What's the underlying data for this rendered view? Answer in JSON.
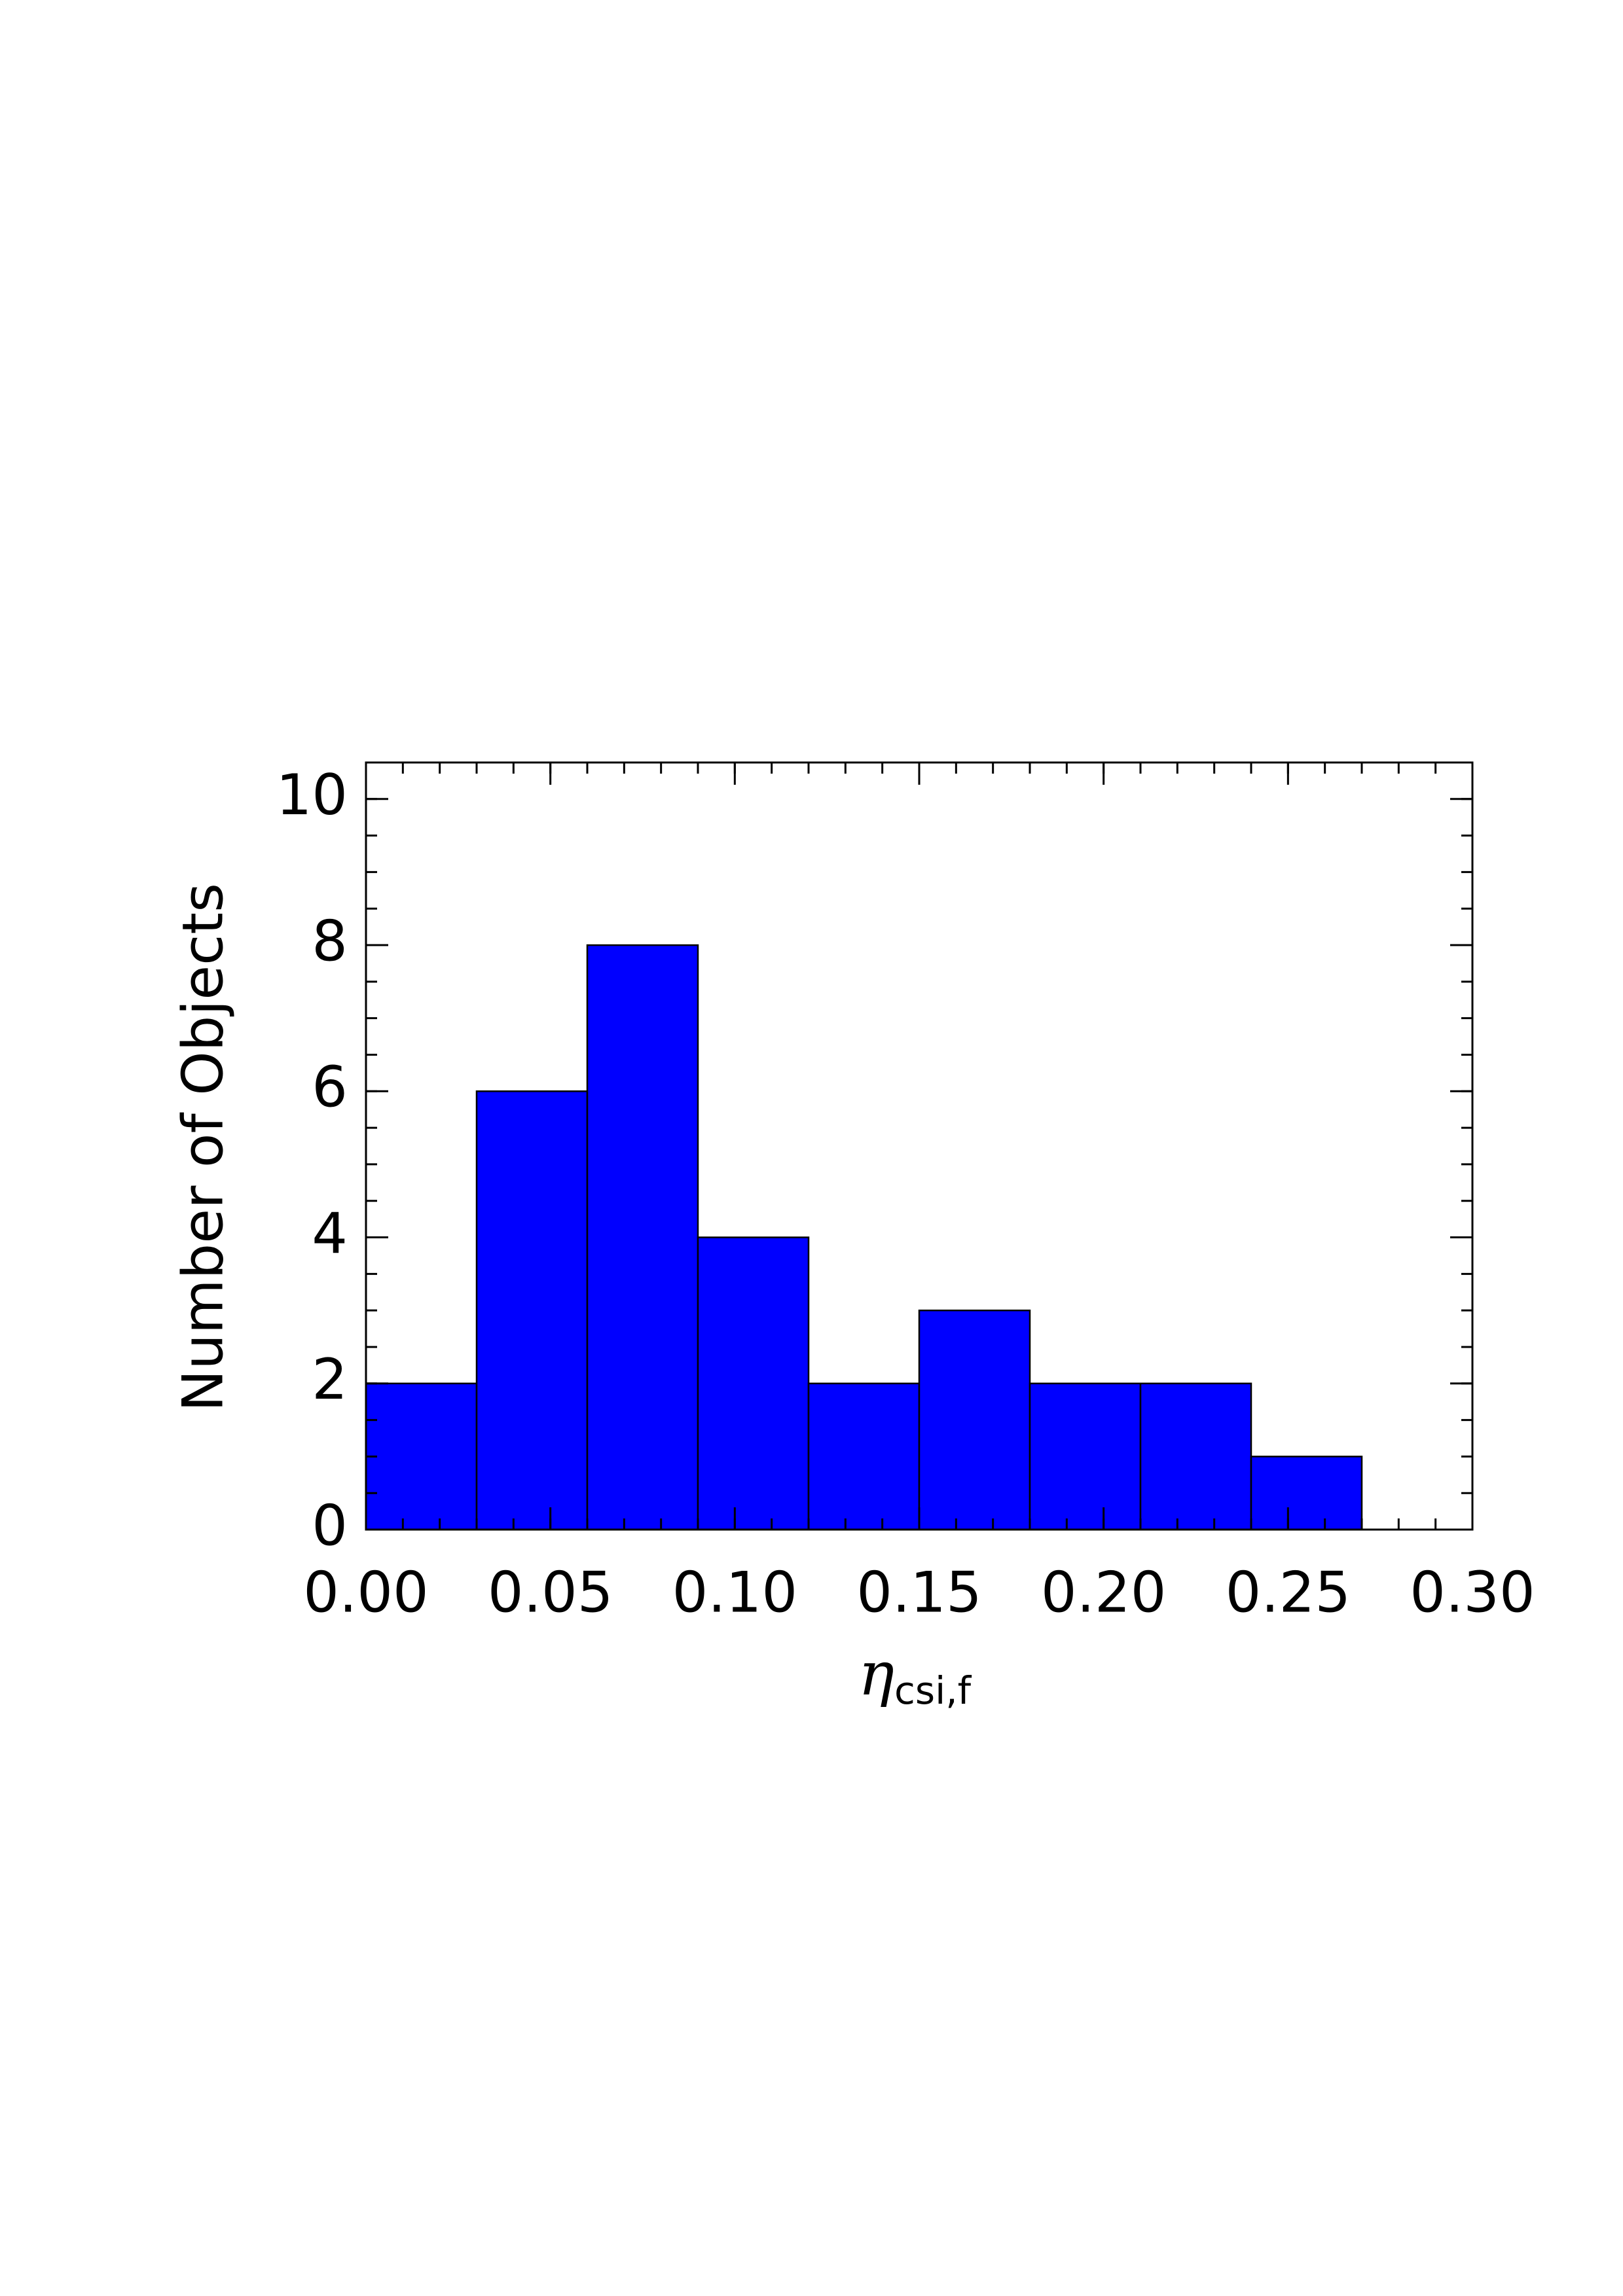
{
  "chart_data": {
    "type": "histogram",
    "x_label": "η",
    "x_label_subscript": "csi,f",
    "y_label": "Number of Objects",
    "bins": [
      0,
      0.03,
      0.06,
      0.09,
      0.12,
      0.15,
      0.18,
      0.21,
      0.24,
      0.27
    ],
    "counts": [
      2,
      6,
      8,
      4,
      2,
      3,
      2,
      2,
      1
    ],
    "color": "#0000ff",
    "xlim": [
      0,
      0.3
    ],
    "xticks": [
      {
        "value": 0,
        "label": "0.00"
      },
      {
        "value": 0.05,
        "label": "0.05"
      },
      {
        "value": 0.1,
        "label": "0.10"
      },
      {
        "value": 0.15,
        "label": "0.15"
      },
      {
        "value": 0.2,
        "label": "0.20"
      },
      {
        "value": 0.25,
        "label": "0.25"
      },
      {
        "value": 0.3,
        "label": "0.30"
      }
    ],
    "ylim": [
      0,
      10.5
    ],
    "yticks": [
      0,
      2,
      4,
      6,
      8,
      10
    ],
    "x_minor_divisions": 5,
    "y_minor_divisions": 4
  }
}
